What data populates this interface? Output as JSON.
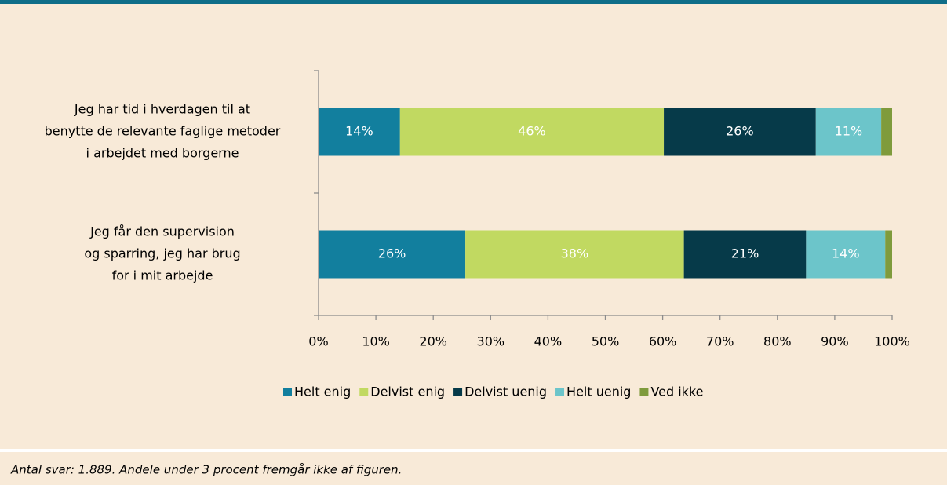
{
  "chart_data": {
    "type": "stacked-bar-horizontal",
    "categories": [
      [
        "Jeg har tid i hverdagen til at",
        "benytte de relevante faglige metoder",
        "i arbejdet med borgerne"
      ],
      [
        "Jeg får den supervision",
        "og sparring, jeg har brug",
        "for i mit arbejde"
      ]
    ],
    "series": [
      {
        "name": "Helt enig",
        "color": "#127f9e",
        "values": [
          14.2,
          25.6
        ],
        "value_labels": [
          "14%",
          "26%"
        ]
      },
      {
        "name": "Delvist enig",
        "color": "#c1d961",
        "values": [
          46.0,
          38.1
        ],
        "value_labels": [
          "46%",
          "38%"
        ]
      },
      {
        "name": "Delvist uenig",
        "color": "#063a49",
        "values": [
          26.5,
          21.3
        ],
        "value_labels": [
          "26%",
          "21%"
        ]
      },
      {
        "name": "Helt uenig",
        "color": "#6cc5ca",
        "values": [
          11.4,
          13.8
        ],
        "value_labels": [
          "11%",
          "14%"
        ]
      },
      {
        "name": "Ved ikke",
        "color": "#7f9b3c",
        "values": [
          1.9,
          1.2
        ],
        "value_labels": [
          null,
          null
        ]
      }
    ],
    "xlim": [
      0,
      100
    ],
    "xticks": [
      {
        "value": 0,
        "label": "0%"
      },
      {
        "value": 10,
        "label": "10%"
      },
      {
        "value": 20,
        "label": "20%"
      },
      {
        "value": 30,
        "label": "30%"
      },
      {
        "value": 40,
        "label": "40%"
      },
      {
        "value": 50,
        "label": "50%"
      },
      {
        "value": 60,
        "label": "60%"
      },
      {
        "value": 70,
        "label": "70%"
      },
      {
        "value": 80,
        "label": "80%"
      },
      {
        "value": 90,
        "label": "90%"
      },
      {
        "value": 100,
        "label": "100%"
      }
    ],
    "legend": "bottom",
    "note": "Antal svar: 1.889.  Andele under 3 procent fremgår ikke af figuren."
  }
}
